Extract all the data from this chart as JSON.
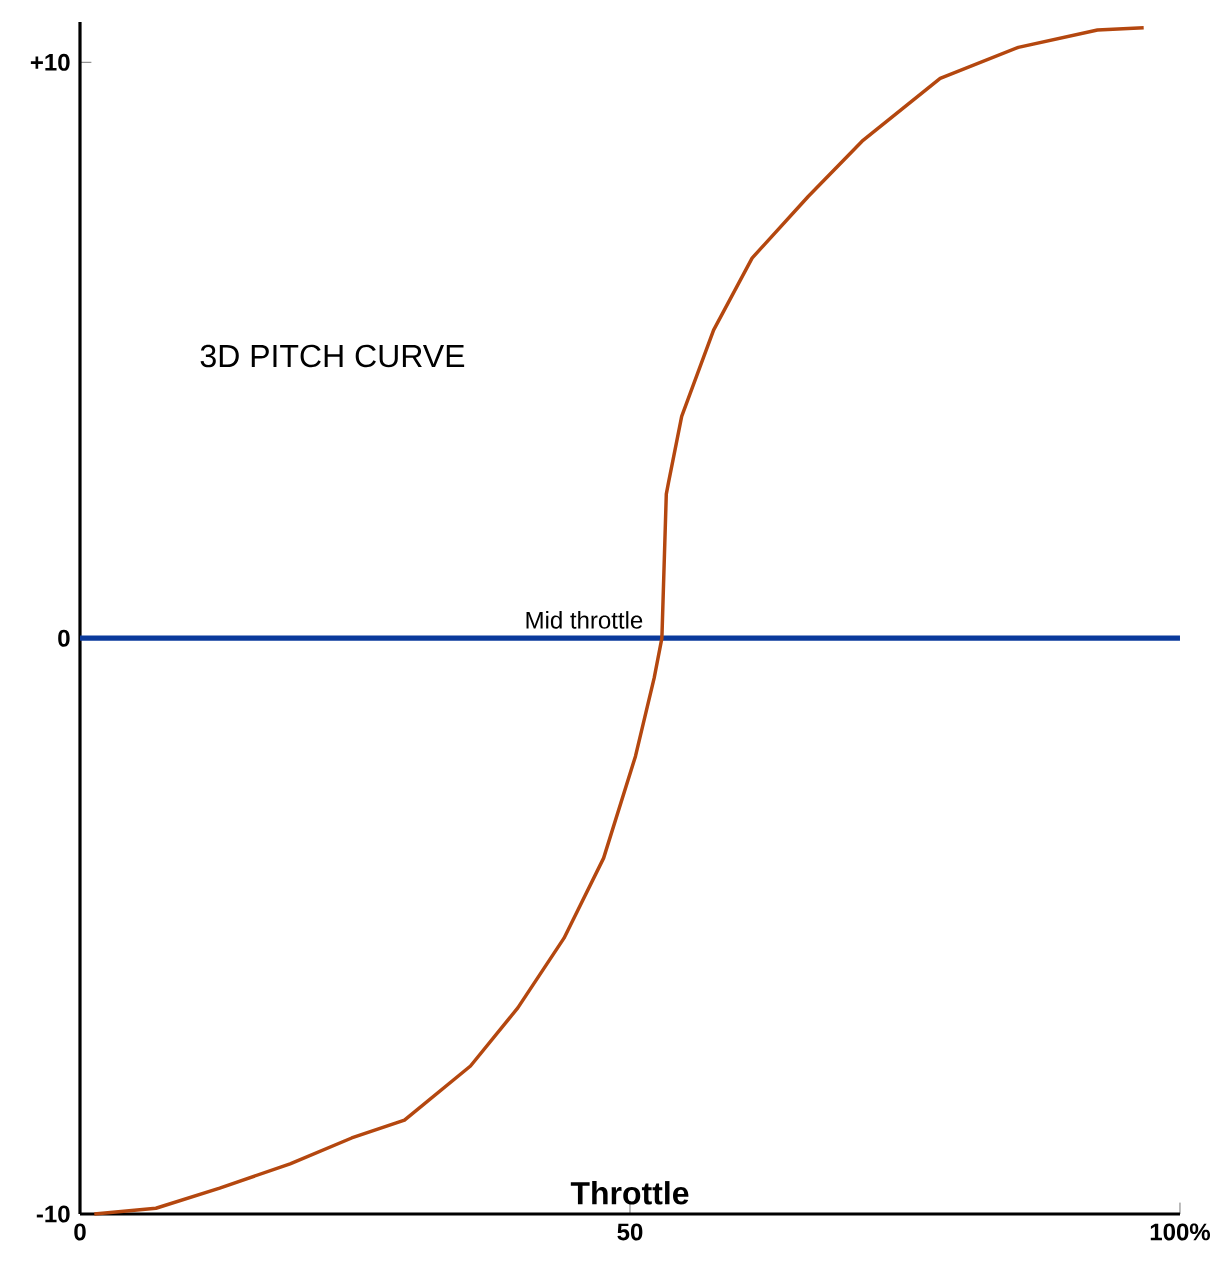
{
  "chart_data": {
    "type": "line",
    "title": "3D PITCH CURVE",
    "xlabel": "Throttle",
    "xlim": [
      0,
      100
    ],
    "ylim": [
      -10,
      10.7
    ],
    "xticks": [
      0,
      50,
      {
        "value": 100,
        "label": "100%"
      }
    ],
    "yticks": [
      {
        "value": 10,
        "label": "+10"
      },
      0,
      -10
    ],
    "series": [
      {
        "color": "#b4470f",
        "x": [
          1.3,
          6.9,
          12.7,
          19.1,
          24.7,
          29.5,
          35.5,
          39.8,
          44.0,
          47.6,
          50.5,
          52.2,
          52.9,
          53.3,
          53.5,
          54.7,
          57.6,
          61.1,
          66.2,
          71.1,
          78.2,
          85.3,
          92.5,
          96.7
        ],
        "values": [
          -10,
          -9.9,
          -9.55,
          -9.13,
          -8.68,
          -8.37,
          -7.43,
          -6.42,
          -5.21,
          -3.82,
          -2.05,
          -0.69,
          0,
          2.5,
          2.7,
          3.85,
          5.35,
          6.6,
          7.67,
          8.63,
          9.72,
          10.26,
          10.56,
          10.6
        ]
      }
    ],
    "ref_lines": [
      {
        "axis": "y",
        "value": 0,
        "label": "Mid throttle",
        "color": "#0a3a9c"
      }
    ],
    "grid": false,
    "marker": "none",
    "line_style": "solid"
  }
}
